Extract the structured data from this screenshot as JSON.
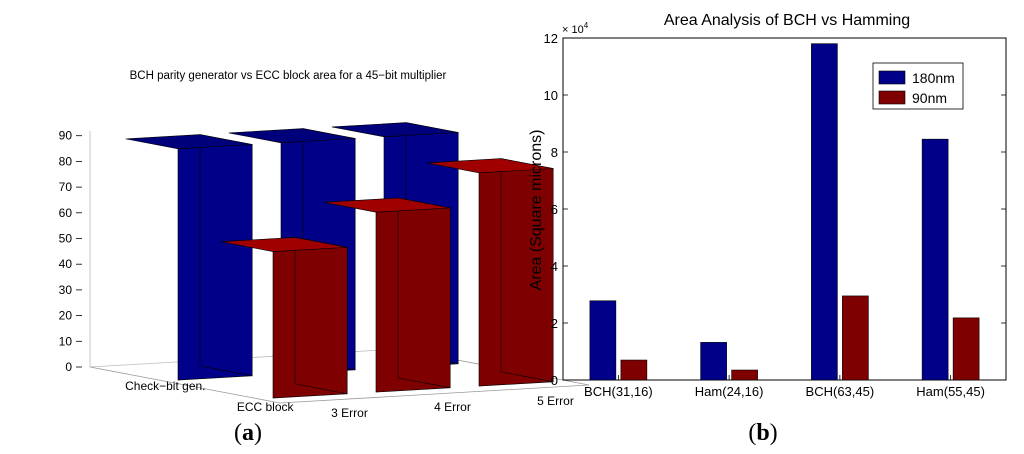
{
  "panels": {
    "a": {
      "open": "(",
      "letter": "a",
      "close": ")"
    },
    "b": {
      "open": "(",
      "letter": "b",
      "close": ")"
    }
  },
  "colors": {
    "blue": "#000088",
    "red": "#7f0000",
    "blue_top": "#00007a",
    "red_top": "#a00000"
  },
  "chart_data": [
    {
      "type": "bar3d",
      "title": "BCH parity generator vs ECC block area for a 45−bit multiplier",
      "zlim": [
        0,
        90
      ],
      "zticks": [
        "0",
        "10",
        "20",
        "30",
        "40",
        "50",
        "60",
        "70",
        "80",
        "90"
      ],
      "rows": [
        "Check−bit gen.",
        "ECC block"
      ],
      "columns": [
        "3 Error",
        "4 Error",
        "5 Error"
      ],
      "series": [
        {
          "name": "Check−bit gen.",
          "values": [
            90,
            90,
            90
          ]
        },
        {
          "name": "ECC block",
          "values": [
            57,
            70,
            83
          ]
        }
      ]
    },
    {
      "type": "bar",
      "title": "Area Analysis of BCH vs Hamming",
      "ylabel": "Area (Square microns)",
      "yexponent": "× 10",
      "yexponent_power": "4",
      "ylim": [
        0,
        120000
      ],
      "yticks": [
        "0",
        "2",
        "4",
        "6",
        "8",
        "10",
        "12"
      ],
      "categories": [
        "BCH(31,16)",
        "Ham(24,16)",
        "BCH(63,45)",
        "Ham(55,45)"
      ],
      "legend_position": "top-right",
      "series": [
        {
          "name": "180nm",
          "values": [
            27800,
            13200,
            118000,
            84500
          ]
        },
        {
          "name": "90nm",
          "values": [
            7000,
            3500,
            29500,
            21800
          ]
        }
      ]
    }
  ]
}
